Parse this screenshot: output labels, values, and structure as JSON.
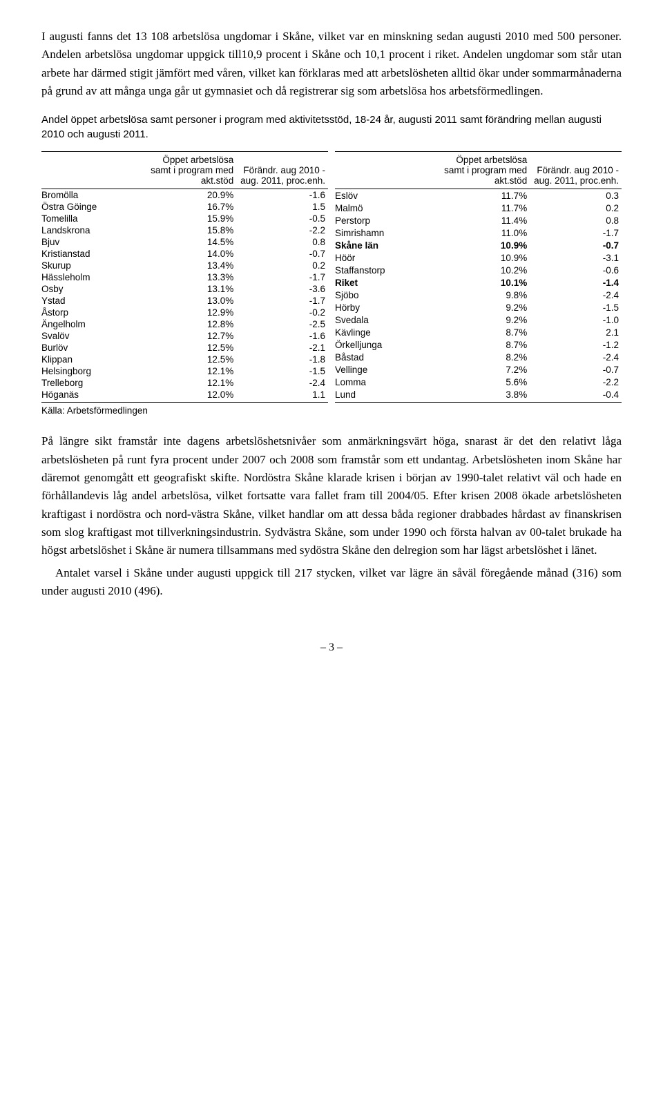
{
  "para1": "I augusti fanns det 13 108 arbetslösa ungdomar i Skåne, vilket var en minskning sedan augusti 2010 med 500 personer. Andelen arbetslösa ungdomar uppgick till10,9 procent i Skåne och 10,1 procent i riket. Andelen ungdomar som står utan arbete har därmed stigit jämfört med våren, vilket kan förklaras med att arbetslösheten alltid ökar under sommarmånaderna på grund av att många unga går ut gymnasiet och då registrerar sig som arbetslösa hos arbetsförmedlingen.",
  "caption": "Andel öppet arbetslösa samt personer i program med aktivitetsstöd, 18-24 år, augusti 2011 samt förändring mellan augusti 2010 och augusti 2011.",
  "headers": {
    "col1": "Öppet arbetslösa samt i program med akt.stöd",
    "col2": "Förändr. aug 2010 - aug. 2011, proc.enh.",
    "col3": "Öppet arbetslösa samt i program med akt.stöd",
    "col4": "Förändr. aug 2010 - aug. 2011, proc.enh."
  },
  "left_table": [
    {
      "name": "Bromölla",
      "pct": "20.9%",
      "chg": "-1.6"
    },
    {
      "name": "Östra Göinge",
      "pct": "16.7%",
      "chg": "1.5"
    },
    {
      "name": "Tomelilla",
      "pct": "15.9%",
      "chg": "-0.5"
    },
    {
      "name": "Landskrona",
      "pct": "15.8%",
      "chg": "-2.2"
    },
    {
      "name": "Bjuv",
      "pct": "14.5%",
      "chg": "0.8"
    },
    {
      "name": "Kristianstad",
      "pct": "14.0%",
      "chg": "-0.7"
    },
    {
      "name": "Skurup",
      "pct": "13.4%",
      "chg": "0.2"
    },
    {
      "name": "Hässleholm",
      "pct": "13.3%",
      "chg": "-1.7"
    },
    {
      "name": "Osby",
      "pct": "13.1%",
      "chg": "-3.6"
    },
    {
      "name": "Ystad",
      "pct": "13.0%",
      "chg": "-1.7"
    },
    {
      "name": "Åstorp",
      "pct": "12.9%",
      "chg": "-0.2"
    },
    {
      "name": "Ängelholm",
      "pct": "12.8%",
      "chg": "-2.5"
    },
    {
      "name": "Svalöv",
      "pct": "12.7%",
      "chg": "-1.6"
    },
    {
      "name": "Burlöv",
      "pct": "12.5%",
      "chg": "-2.1"
    },
    {
      "name": "Klippan",
      "pct": "12.5%",
      "chg": "-1.8"
    },
    {
      "name": "Helsingborg",
      "pct": "12.1%",
      "chg": "-1.5"
    },
    {
      "name": "Trelleborg",
      "pct": "12.1%",
      "chg": "-2.4"
    },
    {
      "name": "Höganäs",
      "pct": "12.0%",
      "chg": "1.1"
    }
  ],
  "right_table": [
    {
      "name": "Eslöv",
      "pct": "11.7%",
      "chg": "0.3",
      "bold": false
    },
    {
      "name": "Malmö",
      "pct": "11.7%",
      "chg": "0.2",
      "bold": false
    },
    {
      "name": "Perstorp",
      "pct": "11.4%",
      "chg": "0.8",
      "bold": false
    },
    {
      "name": "Simrishamn",
      "pct": "11.0%",
      "chg": "-1.7",
      "bold": false
    },
    {
      "name": "Skåne län",
      "pct": "10.9%",
      "chg": "-0.7",
      "bold": true
    },
    {
      "name": "Höör",
      "pct": "10.9%",
      "chg": "-3.1",
      "bold": false
    },
    {
      "name": "Staffanstorp",
      "pct": "10.2%",
      "chg": "-0.6",
      "bold": false
    },
    {
      "name": "Riket",
      "pct": "10.1%",
      "chg": "-1.4",
      "bold": true
    },
    {
      "name": "Sjöbo",
      "pct": "9.8%",
      "chg": "-2.4",
      "bold": false
    },
    {
      "name": "Hörby",
      "pct": "9.2%",
      "chg": "-1.5",
      "bold": false
    },
    {
      "name": "Svedala",
      "pct": "9.2%",
      "chg": "-1.0",
      "bold": false
    },
    {
      "name": "Kävlinge",
      "pct": "8.7%",
      "chg": "2.1",
      "bold": false
    },
    {
      "name": "Örkelljunga",
      "pct": "8.7%",
      "chg": "-1.2",
      "bold": false
    },
    {
      "name": "Båstad",
      "pct": "8.2%",
      "chg": "-2.4",
      "bold": false
    },
    {
      "name": "Vellinge",
      "pct": "7.2%",
      "chg": "-0.7",
      "bold": false
    },
    {
      "name": "Lomma",
      "pct": "5.6%",
      "chg": "-2.2",
      "bold": false
    },
    {
      "name": "Lund",
      "pct": "3.8%",
      "chg": "-0.4",
      "bold": false
    }
  ],
  "source": "Källa: Arbetsförmedlingen",
  "para2": "På längre sikt framstår inte dagens arbetslöshetsnivåer som anmärkningsvärt höga, snarast är det den relativt låga arbetslösheten på runt fyra procent under 2007 och 2008 som framstår som ett undantag. Arbetslösheten inom Skåne har däremot genomgått ett geografiskt skifte. Nordöstra Skåne klarade krisen i början av 1990-talet relativt väl och hade en förhållandevis låg andel arbetslösa, vilket fortsatte vara fallet fram till 2004/05. Efter krisen 2008 ökade arbetslösheten kraftigast i nordöstra och nord-västra Skåne, vilket handlar om att dessa båda regioner drabbades hårdast av finanskrisen som slog kraftigast mot tillverkningsindustrin. Sydvästra Skåne, som under 1990 och första halvan av 00-talet brukade ha högst arbetslöshet i Skåne är numera tillsammans med sydöstra Skåne den delregion som har lägst arbetslöshet i länet.",
  "para3": "Antalet varsel i Skåne under augusti uppgick till 217 stycken, vilket var lägre än såväl föregående månad (316) som under augusti 2010 (496).",
  "pagenum": "– 3 –"
}
